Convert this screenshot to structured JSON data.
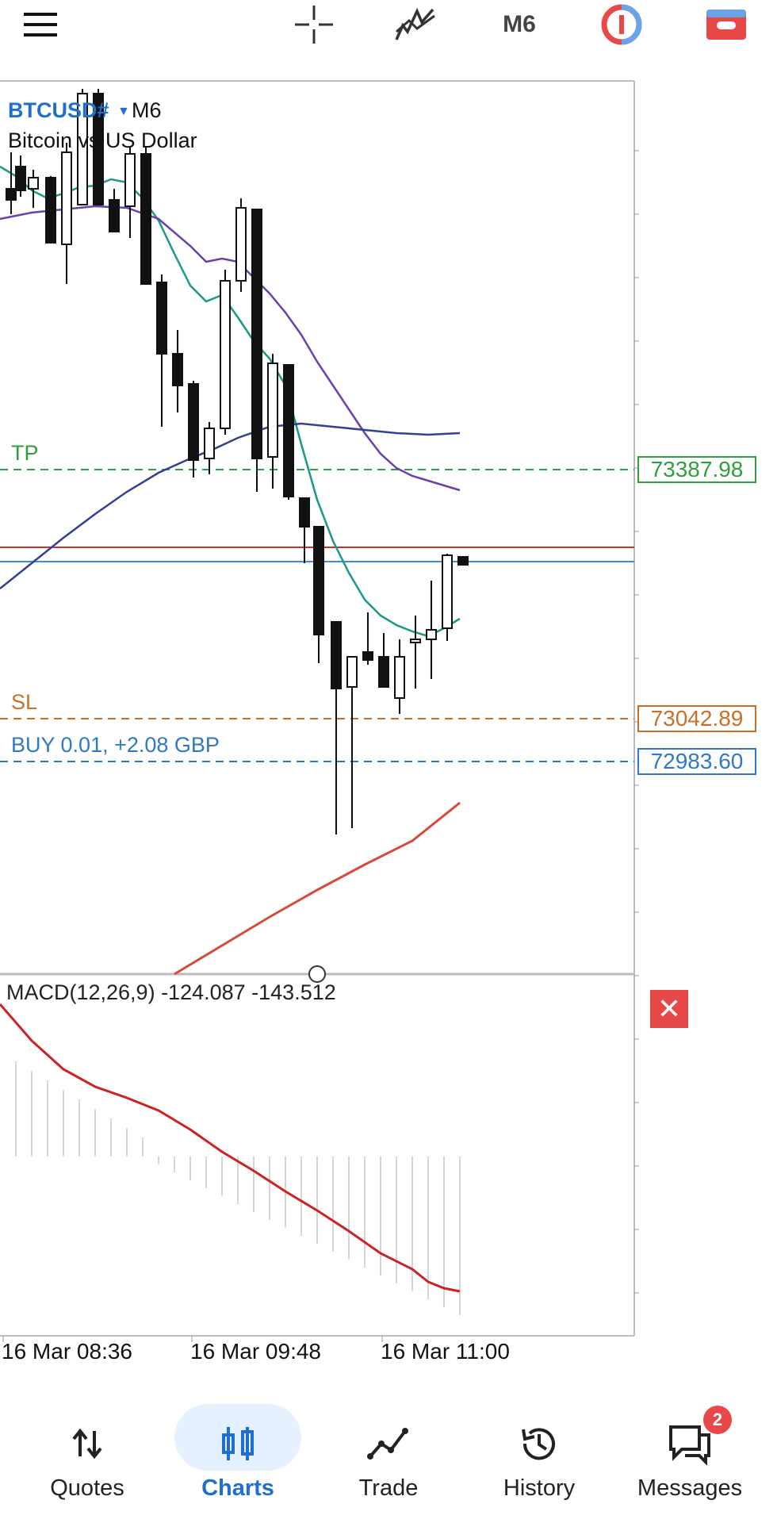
{
  "toolbar": {
    "icons": [
      "menu-icon",
      "crosshair-icon",
      "indicators-icon",
      "timeframe-selector",
      "chart-type-icon",
      "trade-icon"
    ],
    "timeframe": "M6",
    "colors": {
      "chart_type": "#e94848",
      "trade": "#e94848"
    }
  },
  "symbol": {
    "name": "BTCUSD#",
    "timeframe": "M6",
    "description": "Bitcoin vs US Dollar"
  },
  "lines": {
    "tp": {
      "label": "TP",
      "price": "73387.98",
      "color": "#2e9e3e"
    },
    "sl": {
      "label": "SL",
      "price": "73042.89",
      "color": "#c8702a"
    },
    "buy": {
      "label": "BUY 0.01,  +2.08 GBP",
      "price": "72983.60",
      "color": "#2f78c8"
    },
    "bid_color": "#d62b2b",
    "ask_color": "#3c8fe0"
  },
  "macd": {
    "label": "MACD(12,26,9) -124.087 -143.512"
  },
  "time_axis": [
    "16 Mar 08:36",
    "16 Mar 09:48",
    "16 Mar 11:00"
  ],
  "nav": {
    "items": [
      {
        "label": "Quotes",
        "icon": "quotes-icon"
      },
      {
        "label": "Charts",
        "icon": "charts-icon",
        "active": true
      },
      {
        "label": "Trade",
        "icon": "trade-icon"
      },
      {
        "label": "History",
        "icon": "history-icon"
      },
      {
        "label": "Messages",
        "icon": "messages-icon",
        "badge": "2"
      }
    ]
  }
}
